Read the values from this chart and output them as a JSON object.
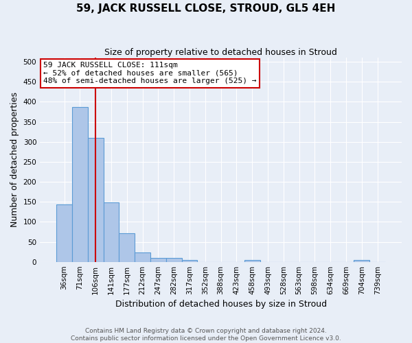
{
  "title": "59, JACK RUSSELL CLOSE, STROUD, GL5 4EH",
  "subtitle": "Size of property relative to detached houses in Stroud",
  "xlabel": "Distribution of detached houses by size in Stroud",
  "ylabel": "Number of detached properties",
  "footer": "Contains HM Land Registry data © Crown copyright and database right 2024.\nContains public sector information licensed under the Open Government Licence v3.0.",
  "categories": [
    "36sqm",
    "71sqm",
    "106sqm",
    "141sqm",
    "177sqm",
    "212sqm",
    "247sqm",
    "282sqm",
    "317sqm",
    "352sqm",
    "388sqm",
    "423sqm",
    "458sqm",
    "493sqm",
    "528sqm",
    "563sqm",
    "598sqm",
    "634sqm",
    "669sqm",
    "704sqm",
    "739sqm"
  ],
  "values": [
    144,
    387,
    309,
    148,
    71,
    23,
    10,
    10,
    4,
    0,
    0,
    0,
    4,
    0,
    0,
    0,
    0,
    0,
    0,
    4,
    0
  ],
  "bar_color": "#aec6e8",
  "bar_edge_color": "#5b9bd5",
  "background_color": "#e8eef7",
  "grid_color": "#ffffff",
  "vline_x_index": 2,
  "vline_color": "#cc0000",
  "annotation_text": "59 JACK RUSSELL CLOSE: 111sqm\n← 52% of detached houses are smaller (565)\n48% of semi-detached houses are larger (525) →",
  "annotation_box_color": "#ffffff",
  "annotation_box_edge": "#cc0000",
  "ylim": [
    0,
    510
  ],
  "yticks": [
    0,
    50,
    100,
    150,
    200,
    250,
    300,
    350,
    400,
    450,
    500
  ],
  "title_fontsize": 11,
  "subtitle_fontsize": 9,
  "axis_label_fontsize": 9,
  "tick_fontsize": 7.5,
  "footer_fontsize": 6.5,
  "annotation_fontsize": 8
}
